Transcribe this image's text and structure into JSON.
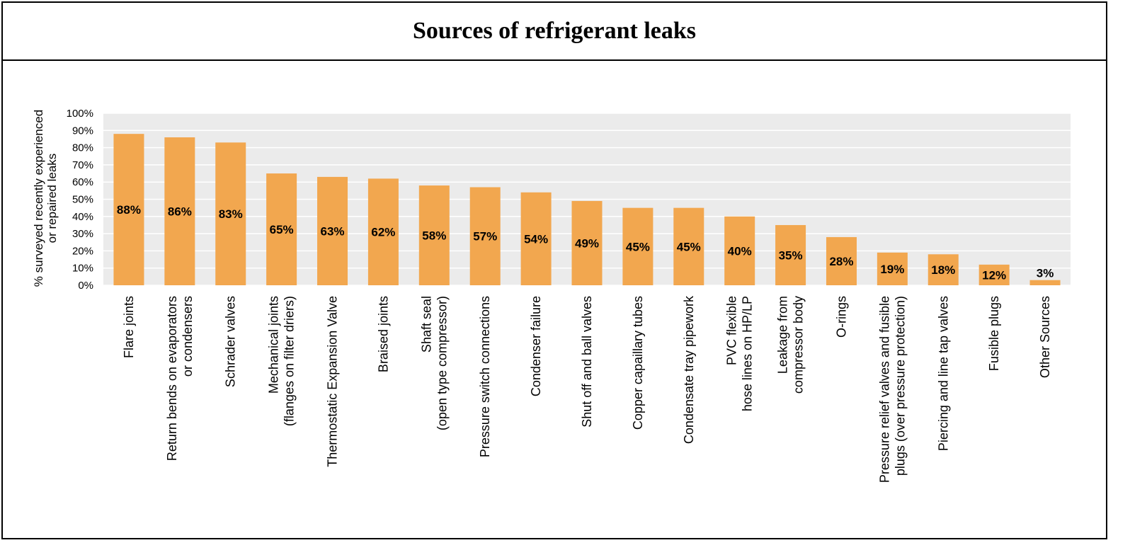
{
  "page": {
    "title": "Sources of refrigerant leaks"
  },
  "chart_data": {
    "type": "bar",
    "title": "Sources of refrigerant leaks",
    "ylabel": [
      "% surveyed recently experienced",
      "or repaired leaks"
    ],
    "xlabel": "",
    "ylim": [
      0,
      100
    ],
    "yticks": [
      {
        "value": 0,
        "label": "0%"
      },
      {
        "value": 10,
        "label": "10%"
      },
      {
        "value": 20,
        "label": "20%"
      },
      {
        "value": 30,
        "label": "30%"
      },
      {
        "value": 40,
        "label": "40%"
      },
      {
        "value": 50,
        "label": "50%"
      },
      {
        "value": 60,
        "label": "60%"
      },
      {
        "value": 70,
        "label": "70%"
      },
      {
        "value": 80,
        "label": "80%"
      },
      {
        "value": 90,
        "label": "90%"
      },
      {
        "value": 100,
        "label": "100%"
      }
    ],
    "grid": true,
    "bar_color": "#F2A74F",
    "plot_background": "#EBEBEB",
    "categories": [
      [
        "Flare joints"
      ],
      [
        "Return bends on evaporators",
        "or condensers"
      ],
      [
        "Schrader valves"
      ],
      [
        "Mechanical joints",
        "(flanges on filter driers)"
      ],
      [
        "Thermostatic Expansion Valve"
      ],
      [
        "Braised joints"
      ],
      [
        "Shaft seal",
        "(open type compressor)"
      ],
      [
        "Pressure switch connections"
      ],
      [
        "Condenser failure"
      ],
      [
        "Shut off and ball valves"
      ],
      [
        "Copper capaillary tubes"
      ],
      [
        "Condensate  tray pipework"
      ],
      [
        "PVC flexible",
        "hose lines on HP/LP"
      ],
      [
        "Leakage from",
        "compressor body"
      ],
      [
        "O-rings"
      ],
      [
        "Pressure relief valves and fusible",
        "plugs (over pressure protection)"
      ],
      [
        "Piercing and line tap valves"
      ],
      [
        "Fusible plugs"
      ],
      [
        "Other Sources"
      ]
    ],
    "values": [
      88,
      86,
      83,
      65,
      63,
      62,
      58,
      57,
      54,
      49,
      45,
      45,
      40,
      35,
      28,
      19,
      18,
      12,
      3
    ],
    "labels": [
      "88%",
      "86%",
      "83%",
      "65%",
      "63%",
      "62%",
      "58%",
      "57%",
      "54%",
      "49%",
      "45%",
      "45%",
      "40%",
      "35%",
      "28%",
      "19%",
      "18%",
      "12%",
      "3%"
    ]
  }
}
